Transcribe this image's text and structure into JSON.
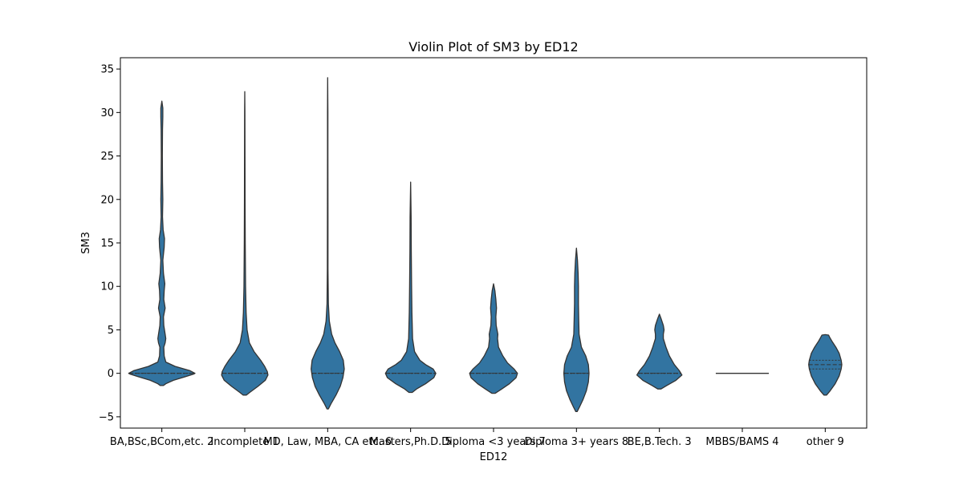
{
  "chart_data": {
    "type": "violin",
    "title": "Violin Plot of SM3 by ED12",
    "xlabel": "ED12",
    "ylabel": "SM3",
    "ylim": [
      -6.3,
      36.3
    ],
    "yticks": [
      -5,
      0,
      5,
      10,
      15,
      20,
      25,
      30,
      35
    ],
    "grid": false,
    "fill_color": "#3274a1",
    "edge_color": "#333333",
    "categories": [
      "BA,BSc,BCom,etc. 2",
      "Incomplete 1",
      "MD, Law, MBA, CA etc. 6",
      "Masters,Ph.D. 5",
      "Diploma <3 years 7",
      "Diploma 3+ years 8",
      "BE,B.Tech. 3",
      "MBBS/BAMS 4",
      "other 9"
    ],
    "violins": [
      {
        "profile": [
          [
            -1.4,
            0.05
          ],
          [
            -1.2,
            0.12
          ],
          [
            -0.8,
            0.35
          ],
          [
            -0.4,
            0.7
          ],
          [
            -0.1,
            0.95
          ],
          [
            0,
            1.0
          ],
          [
            0.3,
            0.85
          ],
          [
            0.8,
            0.4
          ],
          [
            1.3,
            0.12
          ],
          [
            2,
            0.07
          ],
          [
            3,
            0.06
          ],
          [
            3.5,
            0.1
          ],
          [
            4,
            0.12
          ],
          [
            4.5,
            0.1
          ],
          [
            5.5,
            0.06
          ],
          [
            6.5,
            0.05
          ],
          [
            7.5,
            0.1
          ],
          [
            8.5,
            0.06
          ],
          [
            9.5,
            0.07
          ],
          [
            10.3,
            0.09
          ],
          [
            11.5,
            0.05
          ],
          [
            13,
            0.03
          ],
          [
            14.5,
            0.07
          ],
          [
            15.5,
            0.08
          ],
          [
            16.5,
            0.04
          ],
          [
            18,
            0.02
          ],
          [
            20,
            0.03
          ],
          [
            22,
            0.02
          ],
          [
            25,
            0.015
          ],
          [
            28,
            0.02
          ],
          [
            29.5,
            0.03
          ],
          [
            30.5,
            0.03
          ],
          [
            31.3,
            0.0
          ]
        ],
        "quartiles": [
          0,
          0,
          0
        ]
      },
      {
        "profile": [
          [
            -2.5,
            0.05
          ],
          [
            -2.2,
            0.15
          ],
          [
            -1.5,
            0.4
          ],
          [
            -0.8,
            0.62
          ],
          [
            -0.2,
            0.7
          ],
          [
            0.2,
            0.68
          ],
          [
            0.8,
            0.6
          ],
          [
            1.5,
            0.48
          ],
          [
            2.5,
            0.28
          ],
          [
            3.5,
            0.14
          ],
          [
            5,
            0.07
          ],
          [
            7,
            0.04
          ],
          [
            10,
            0.025
          ],
          [
            15,
            0.015
          ],
          [
            20,
            0.01
          ],
          [
            25,
            0.008
          ],
          [
            30,
            0.006
          ],
          [
            32.4,
            0.0
          ]
        ],
        "quartiles": [
          0,
          0,
          0
        ]
      },
      {
        "profile": [
          [
            -4.1,
            0.02
          ],
          [
            -3.5,
            0.1
          ],
          [
            -2.5,
            0.25
          ],
          [
            -1.5,
            0.38
          ],
          [
            -0.5,
            0.46
          ],
          [
            0.5,
            0.5
          ],
          [
            1.5,
            0.47
          ],
          [
            2.5,
            0.36
          ],
          [
            3.5,
            0.22
          ],
          [
            4.5,
            0.12
          ],
          [
            6,
            0.05
          ],
          [
            8,
            0.02
          ],
          [
            12,
            0.01
          ],
          [
            18,
            0.008
          ],
          [
            25,
            0.006
          ],
          [
            30,
            0.006
          ],
          [
            34,
            0.0
          ]
        ],
        "quartiles": [
          0,
          0,
          0
        ]
      },
      {
        "profile": [
          [
            -2.2,
            0.05
          ],
          [
            -1.8,
            0.18
          ],
          [
            -1.2,
            0.45
          ],
          [
            -0.5,
            0.7
          ],
          [
            0,
            0.76
          ],
          [
            0.5,
            0.68
          ],
          [
            1,
            0.45
          ],
          [
            1.5,
            0.28
          ],
          [
            2.5,
            0.12
          ],
          [
            4,
            0.06
          ],
          [
            7,
            0.04
          ],
          [
            10,
            0.03
          ],
          [
            14,
            0.02
          ],
          [
            18,
            0.015
          ],
          [
            22,
            0.0
          ]
        ],
        "quartiles": [
          0,
          0,
          0
        ]
      },
      {
        "profile": [
          [
            -2.3,
            0.05
          ],
          [
            -1.8,
            0.25
          ],
          [
            -1.2,
            0.48
          ],
          [
            -0.5,
            0.68
          ],
          [
            0,
            0.72
          ],
          [
            0.5,
            0.62
          ],
          [
            1.2,
            0.42
          ],
          [
            2,
            0.28
          ],
          [
            3,
            0.15
          ],
          [
            4,
            0.12
          ],
          [
            4.5,
            0.13
          ],
          [
            5.5,
            0.08
          ],
          [
            6.5,
            0.07
          ],
          [
            7.5,
            0.09
          ],
          [
            8.5,
            0.07
          ],
          [
            9.5,
            0.04
          ],
          [
            10.3,
            0.0
          ]
        ],
        "quartiles": [
          0,
          0,
          0
        ]
      },
      {
        "profile": [
          [
            -4.4,
            0.02
          ],
          [
            -3.8,
            0.1
          ],
          [
            -3,
            0.2
          ],
          [
            -2,
            0.3
          ],
          [
            -1,
            0.36
          ],
          [
            0,
            0.38
          ],
          [
            1,
            0.36
          ],
          [
            2,
            0.28
          ],
          [
            3,
            0.15
          ],
          [
            4.5,
            0.08
          ],
          [
            6,
            0.07
          ],
          [
            8,
            0.06
          ],
          [
            10,
            0.06
          ],
          [
            11.5,
            0.05
          ],
          [
            13,
            0.03
          ],
          [
            14.4,
            0.0
          ]
        ],
        "quartiles": [
          0,
          0,
          0
        ]
      },
      {
        "profile": [
          [
            -1.8,
            0.05
          ],
          [
            -1.4,
            0.22
          ],
          [
            -0.8,
            0.5
          ],
          [
            -0.2,
            0.68
          ],
          [
            0.3,
            0.6
          ],
          [
            1,
            0.45
          ],
          [
            2,
            0.3
          ],
          [
            3,
            0.2
          ],
          [
            4,
            0.12
          ],
          [
            4.5,
            0.12
          ],
          [
            5,
            0.14
          ],
          [
            5.5,
            0.12
          ],
          [
            6.2,
            0.06
          ],
          [
            6.8,
            0.0
          ]
        ],
        "quartiles": [
          0,
          0,
          0
        ]
      },
      {
        "profile": [],
        "line_at": 0,
        "line_halfwidth": 0.8
      },
      {
        "profile": [
          [
            -2.5,
            0.04
          ],
          [
            -2,
            0.15
          ],
          [
            -1.2,
            0.3
          ],
          [
            -0.3,
            0.42
          ],
          [
            0.5,
            0.48
          ],
          [
            1,
            0.5
          ],
          [
            1.5,
            0.48
          ],
          [
            2.3,
            0.42
          ],
          [
            3,
            0.32
          ],
          [
            3.7,
            0.2
          ],
          [
            4.1,
            0.14
          ],
          [
            4.4,
            0.1
          ],
          [
            4.45,
            0.0
          ]
        ],
        "quartiles": [
          0.5,
          1.0,
          1.5
        ]
      }
    ]
  }
}
